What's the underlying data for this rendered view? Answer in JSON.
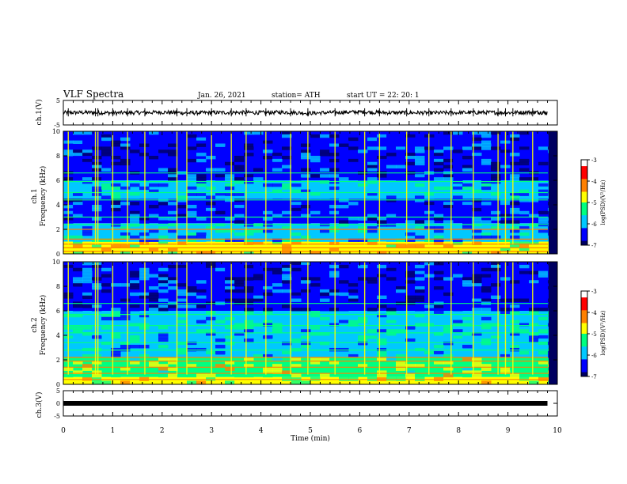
{
  "header": {
    "title": "VLF Spectra",
    "date": "Jan. 26, 2021",
    "station": "station= ATH",
    "start": "start  UT  =   22: 20: 1"
  },
  "chart_data": [
    {
      "type": "line",
      "panel": "ch1-waveform",
      "ylabel": "ch.1(V)",
      "ylim": [
        -5,
        5
      ],
      "yticks": [
        "5",
        "-5"
      ],
      "x": [
        0,
        0.5,
        1,
        1.5,
        2,
        2.5,
        3,
        3.5,
        4,
        4.5,
        5,
        5.5,
        6,
        6.5,
        7,
        7.5,
        8,
        8.5,
        9,
        9.5,
        9.8
      ],
      "y": [
        0,
        0.1,
        -0.1,
        0,
        0.2,
        -0.1,
        0,
        0.1,
        0,
        0.2,
        -0.2,
        0.1,
        0.3,
        0,
        0,
        -0.1,
        0,
        0.1,
        0,
        0.2,
        0
      ],
      "series_color": "#000000"
    },
    {
      "type": "heatmap",
      "panel": "ch1-spectrogram",
      "ylabel_line1": "ch.1",
      "ylabel_line2": "Frequency (kHz)",
      "ylim": [
        0,
        10
      ],
      "yticks": [
        "0",
        "2",
        "4",
        "6",
        "8",
        "10"
      ],
      "colorbar": {
        "label": "log(PSD)(V²/Hz)",
        "ticks": [
          "-3",
          "-4",
          "-5",
          "-6",
          "-7"
        ],
        "range": [
          -7,
          -3
        ],
        "colors": [
          "#000060",
          "#0000ff",
          "#00c8ff",
          "#00ff80",
          "#ffff00",
          "#ff8000",
          "#ff0000",
          "#ffffff"
        ]
      },
      "background_by_freq_khz": [
        {
          "from": 0,
          "to": 1,
          "level": -4.6
        },
        {
          "from": 1,
          "to": 2.5,
          "level": -5.9
        },
        {
          "from": 2.5,
          "to": 4.5,
          "level": -6.3
        },
        {
          "from": 4.5,
          "to": 6,
          "level": -6.0
        },
        {
          "from": 6,
          "to": 10,
          "level": -6.5
        }
      ],
      "tone_lines_khz": [
        0.2,
        0.5,
        0.8,
        1.2,
        2.0,
        2.4,
        3.0,
        4.4,
        5.0,
        5.9,
        6.6
      ],
      "bursts_min": [
        0.1,
        0.65,
        0.7,
        1.0,
        1.3,
        1.65,
        2.3,
        2.5,
        3.0,
        3.4,
        3.7,
        4.1,
        4.6,
        4.95,
        5.5,
        6.1,
        6.4,
        6.95,
        7.4,
        7.85,
        8.3,
        8.8,
        8.95,
        9.1,
        9.5
      ]
    },
    {
      "type": "heatmap",
      "panel": "ch2-spectrogram",
      "ylabel_line1": "ch.2",
      "ylabel_line2": "Frequency (kHz)",
      "ylim": [
        0,
        10
      ],
      "yticks": [
        "0",
        "2",
        "4",
        "6",
        "8",
        "10"
      ],
      "colorbar": {
        "label": "log(PSD)(V²/Hz)",
        "ticks": [
          "-3",
          "-4",
          "-5",
          "-6",
          "-7"
        ],
        "range": [
          -7,
          -3
        ]
      },
      "background_by_freq_khz": [
        {
          "from": 0,
          "to": 0.6,
          "level": -4.8
        },
        {
          "from": 0.6,
          "to": 2.2,
          "level": -5.0
        },
        {
          "from": 2.2,
          "to": 4,
          "level": -5.8
        },
        {
          "from": 4,
          "to": 6,
          "level": -5.7
        },
        {
          "from": 6,
          "to": 10,
          "level": -6.5
        }
      ],
      "tone_lines_khz": [
        0.4,
        0.9,
        1.4,
        1.9,
        2.2,
        2.8,
        3.4,
        4.2,
        4.8,
        5.7,
        6.6
      ],
      "bursts_min": [
        0.1,
        0.65,
        0.7,
        1.0,
        1.3,
        1.65,
        2.3,
        2.5,
        3.0,
        3.4,
        3.7,
        4.1,
        4.6,
        4.95,
        5.5,
        6.1,
        6.4,
        6.95,
        7.4,
        7.85,
        8.3,
        8.8,
        8.95,
        9.1,
        9.5
      ]
    },
    {
      "type": "line",
      "panel": "ch3-waveform",
      "ylabel": "ch.3(V)",
      "ylim": [
        -5,
        5
      ],
      "yticks": [
        "5",
        "0",
        "-5"
      ],
      "x": [
        0,
        9.8
      ],
      "y": [
        0,
        0
      ],
      "series_color": "#000000"
    }
  ],
  "xaxis": {
    "label": "Time  (min)",
    "xlim": [
      0,
      10
    ],
    "ticks": [
      "0",
      "1",
      "2",
      "3",
      "4",
      "5",
      "6",
      "7",
      "8",
      "9",
      "10"
    ]
  }
}
